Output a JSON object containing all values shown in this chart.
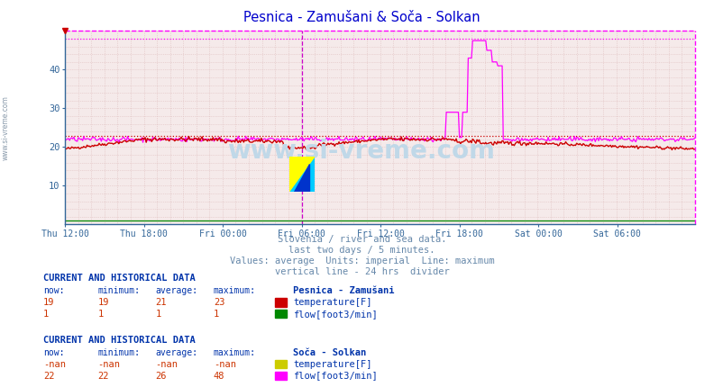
{
  "title": "Pesnica - Zamušani & Soča - Solkan",
  "title_color": "#0000cc",
  "bg_color": "#ffffff",
  "plot_bg_color": "#f5eaea",
  "grid_color": "#ddbbbb",
  "ylim": [
    0,
    50
  ],
  "yticks": [
    10,
    20,
    30,
    40
  ],
  "n_points": 576,
  "x_tick_labels": [
    "Thu 12:00",
    "Thu 18:00",
    "Fri 00:00",
    "Fri 06:00",
    "Fri 12:00",
    "Fri 18:00",
    "Sat 00:00",
    "Sat 06:00"
  ],
  "x_tick_positions": [
    0,
    72,
    144,
    216,
    288,
    360,
    432,
    504
  ],
  "divider_x": 216,
  "dotted_line_red_y": 23,
  "dotted_line_magenta_y": 48,
  "tick_color": "#336699",
  "watermark_text": "www.si-vreme.com",
  "watermark_color": "#c0d8e8",
  "subtitle_lines": [
    "Slovenia / river and sea data.",
    "last two days / 5 minutes.",
    "Values: average  Units: imperial  Line: maximum",
    "vertical line - 24 hrs  divider"
  ],
  "subtitle_color": "#6688aa",
  "legend_header_color": "#0033aa",
  "legend_value_color": "#cc3300",
  "table1_header": "CURRENT AND HISTORICAL DATA",
  "table1_station": "Pesnica - Zamušani",
  "table1_row1": {
    "now": "19",
    "min": "19",
    "avg": "21",
    "max": "23",
    "label": "temperature[F]",
    "color": "#cc0000"
  },
  "table1_row2": {
    "now": "1",
    "min": "1",
    "avg": "1",
    "max": "1",
    "label": "flow[foot3/min]",
    "color": "#008800"
  },
  "table2_header": "CURRENT AND HISTORICAL DATA",
  "table2_station": "Soča - Solkan",
  "table2_row1": {
    "now": "-nan",
    "min": "-nan",
    "avg": "-nan",
    "max": "-nan",
    "label": "temperature[F]",
    "color": "#cccc00"
  },
  "table2_row2": {
    "now": "22",
    "min": "22",
    "avg": "26",
    "max": "48",
    "label": "flow[foot3/min]",
    "color": "#ff00ff"
  },
  "left_label": "www.si-vreme.com",
  "border_color_top": "#ff00ff",
  "border_color_right": "#ff00ff"
}
